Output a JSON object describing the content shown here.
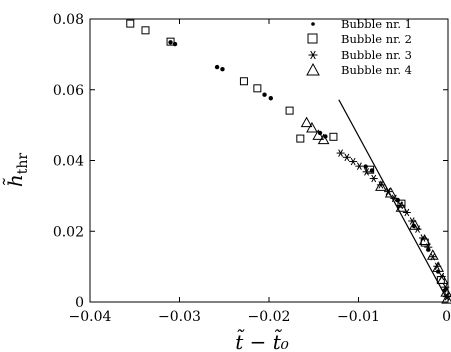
{
  "chart_data": {
    "type": "scatter",
    "xlabel": "t̃ − t̃₀",
    "ylabel": "h̃",
    "ylabel_sub": "thr",
    "xlim": [
      -0.04,
      0
    ],
    "ylim": [
      0,
      0.08
    ],
    "xticks": [
      -0.04,
      -0.03,
      -0.02,
      -0.01,
      0
    ],
    "xtick_labels": [
      "−0.04",
      "−0.03",
      "−0.02",
      "−0.01",
      "0"
    ],
    "yticks": [
      0,
      0.02,
      0.04,
      0.06,
      0.08
    ],
    "ytick_labels": [
      "0",
      "0.02",
      "0.04",
      "0.06",
      "0.08"
    ],
    "legend_position": "top-right",
    "series": [
      {
        "name": "Bubble nr. 1",
        "marker": "dot",
        "points": [
          [
            -0.031,
            0.0734
          ],
          [
            -0.0305,
            0.0729
          ],
          [
            -0.0258,
            0.0664
          ],
          [
            -0.0252,
            0.0658
          ],
          [
            -0.0205,
            0.0586
          ],
          [
            -0.0198,
            0.0576
          ],
          [
            -0.0143,
            0.0478
          ],
          [
            -0.0137,
            0.0468
          ],
          [
            -0.0092,
            0.0383
          ],
          [
            -0.0085,
            0.0372
          ],
          [
            -0.0056,
            0.0288
          ],
          [
            -0.0038,
            0.0215
          ],
          [
            -0.0022,
            0.0148
          ],
          [
            -0.0011,
            0.0086
          ],
          [
            -0.0004,
            0.0032
          ]
        ]
      },
      {
        "name": "Bubble nr. 2",
        "marker": "square",
        "points": [
          [
            -0.0355,
            0.0787
          ],
          [
            -0.0338,
            0.0768
          ],
          [
            -0.031,
            0.0736
          ],
          [
            -0.0228,
            0.0624
          ],
          [
            -0.0213,
            0.0604
          ],
          [
            -0.0177,
            0.0541
          ],
          [
            -0.0165,
            0.0462
          ],
          [
            -0.0128,
            0.0467
          ],
          [
            -0.0087,
            0.0374
          ],
          [
            -0.0052,
            0.0278
          ],
          [
            -0.0026,
            0.0168
          ],
          [
            -0.0008,
            0.0062
          ]
        ]
      },
      {
        "name": "Bubble nr. 3",
        "marker": "star",
        "points": [
          [
            -0.012,
            0.0421
          ],
          [
            -0.0113,
            0.0409
          ],
          [
            -0.0106,
            0.0397
          ],
          [
            -0.0099,
            0.0384
          ],
          [
            -0.0091,
            0.0368
          ],
          [
            -0.0083,
            0.0349
          ],
          [
            -0.0075,
            0.0331
          ],
          [
            -0.0067,
            0.0312
          ],
          [
            -0.006,
            0.0293
          ],
          [
            -0.0053,
            0.0273
          ],
          [
            -0.0046,
            0.0253
          ],
          [
            -0.004,
            0.0229
          ],
          [
            -0.0034,
            0.0206
          ],
          [
            -0.0028,
            0.0181
          ],
          [
            -0.0022,
            0.0155
          ],
          [
            -0.0017,
            0.0128
          ],
          [
            -0.0012,
            0.0101
          ],
          [
            -0.0007,
            0.0072
          ],
          [
            -0.0003,
            0.0042
          ],
          [
            -0.0001,
            0.0015
          ]
        ]
      },
      {
        "name": "Bubble nr. 4",
        "marker": "triangle",
        "points": [
          [
            -0.0158,
            0.0507
          ],
          [
            -0.0152,
            0.0492
          ],
          [
            -0.0145,
            0.0471
          ],
          [
            -0.0139,
            0.0459
          ],
          [
            -0.0075,
            0.0327
          ],
          [
            -0.0064,
            0.0308
          ],
          [
            -0.0052,
            0.0268
          ],
          [
            -0.0037,
            0.0217
          ],
          [
            -0.0026,
            0.0174
          ],
          [
            -0.0017,
            0.0132
          ],
          [
            -0.0011,
            0.0098
          ],
          [
            -0.0006,
            0.0064
          ],
          [
            -0.0002,
            0.0028
          ],
          [
            -0.0001,
            0.0008
          ]
        ]
      }
    ],
    "reference_line": {
      "points": [
        [
          -0.0122,
          0.0572
        ],
        [
          -0.0001,
          0.0008
        ]
      ]
    }
  }
}
